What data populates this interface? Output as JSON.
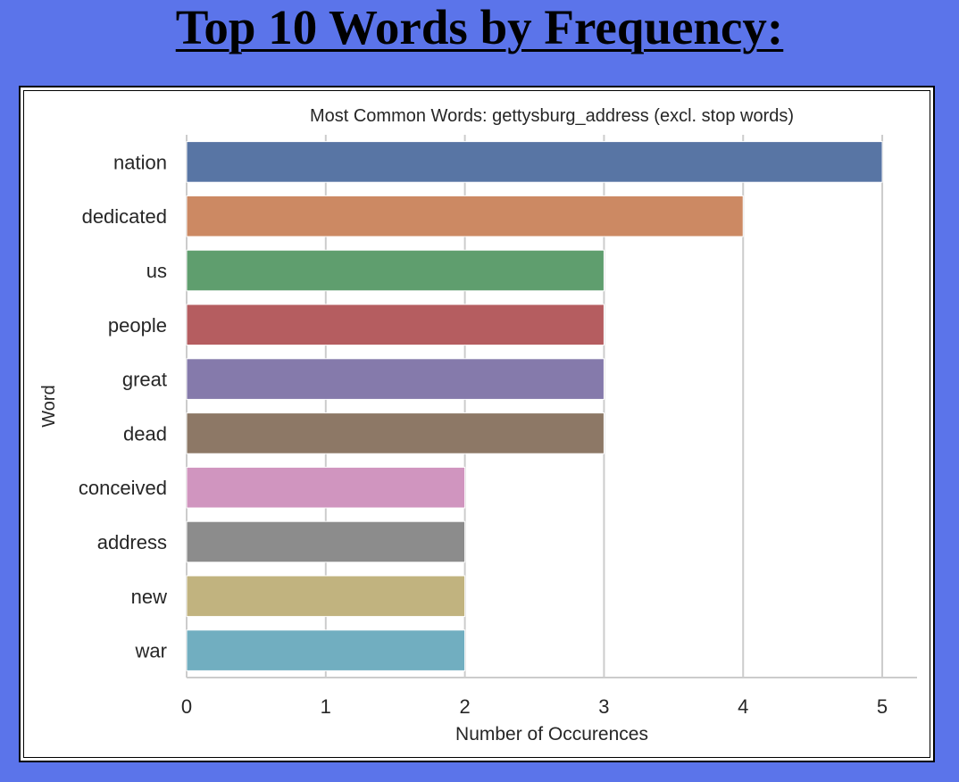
{
  "page": {
    "title": "Top 10 Words by Frequency:"
  },
  "chart_data": {
    "type": "bar",
    "orientation": "horizontal",
    "title": "Most Common Words: gettysburg_address (excl. stop words)",
    "xlabel": "Number of Occurences",
    "ylabel": "Word",
    "xlim": [
      0,
      5.25
    ],
    "xticks": [
      0,
      1,
      2,
      3,
      4,
      5
    ],
    "grid": "vertical",
    "categories": [
      "nation",
      "dedicated",
      "us",
      "people",
      "great",
      "dead",
      "conceived",
      "address",
      "new",
      "war"
    ],
    "values": [
      5,
      4,
      3,
      3,
      3,
      3,
      2,
      2,
      2,
      2
    ],
    "colors": [
      "#5875a4",
      "#cc8963",
      "#5f9e6e",
      "#b55d60",
      "#857aab",
      "#8d7866",
      "#d095bf",
      "#8c8c8c",
      "#c1b37f",
      "#71aec0"
    ]
  }
}
